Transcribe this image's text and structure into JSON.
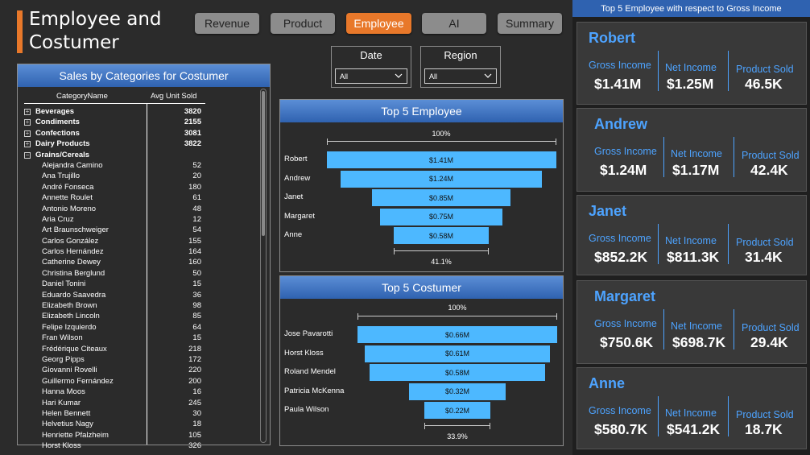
{
  "header": {
    "title_line1": "Employee and",
    "title_line2": "Costumer"
  },
  "nav": {
    "buttons": [
      "Revenue",
      "Product",
      "Employee",
      "AI",
      "Summary"
    ],
    "active": "Employee"
  },
  "slicers": [
    {
      "title": "Date",
      "value": "All"
    },
    {
      "title": "Region",
      "value": "All"
    }
  ],
  "table": {
    "title": "Sales by Categories for Costumer",
    "col_name": "CategoryName",
    "col_value": "Avg Unit Sold",
    "rows": [
      {
        "type": "cat",
        "expand": "+",
        "name": "Beverages",
        "value": "3820"
      },
      {
        "type": "cat",
        "expand": "+",
        "name": "Condiments",
        "value": "2155"
      },
      {
        "type": "cat",
        "expand": "+",
        "name": "Confections",
        "value": "3081"
      },
      {
        "type": "cat",
        "expand": "+",
        "name": "Dairy Products",
        "value": "3822"
      },
      {
        "type": "cat",
        "expand": "−",
        "name": "Grains/Cereals",
        "value": ""
      },
      {
        "type": "item",
        "name": "Alejandra Camino",
        "value": "52"
      },
      {
        "type": "item",
        "name": "Ana Trujillo",
        "value": "20"
      },
      {
        "type": "item",
        "name": "André Fonseca",
        "value": "180"
      },
      {
        "type": "item",
        "name": "Annette Roulet",
        "value": "61"
      },
      {
        "type": "item",
        "name": "Antonio Moreno",
        "value": "48"
      },
      {
        "type": "item",
        "name": "Aria Cruz",
        "value": "12"
      },
      {
        "type": "item",
        "name": "Art Braunschweiger",
        "value": "54"
      },
      {
        "type": "item",
        "name": "Carlos González",
        "value": "155"
      },
      {
        "type": "item",
        "name": "Carlos Hernández",
        "value": "164"
      },
      {
        "type": "item",
        "name": "Catherine Dewey",
        "value": "160"
      },
      {
        "type": "item",
        "name": "Christina Berglund",
        "value": "50"
      },
      {
        "type": "item",
        "name": "Daniel Tonini",
        "value": "15"
      },
      {
        "type": "item",
        "name": "Eduardo Saavedra",
        "value": "36"
      },
      {
        "type": "item",
        "name": "Elizabeth Brown",
        "value": "98"
      },
      {
        "type": "item",
        "name": "Elizabeth Lincoln",
        "value": "85"
      },
      {
        "type": "item",
        "name": "Felipe Izquierdo",
        "value": "64"
      },
      {
        "type": "item",
        "name": "Fran Wilson",
        "value": "15"
      },
      {
        "type": "item",
        "name": "Frédérique Citeaux",
        "value": "218"
      },
      {
        "type": "item",
        "name": "Georg Pipps",
        "value": "172"
      },
      {
        "type": "item",
        "name": "Giovanni Rovelli",
        "value": "220"
      },
      {
        "type": "item",
        "name": "Guillermo Fernández",
        "value": "200"
      },
      {
        "type": "item",
        "name": "Hanna Moos",
        "value": "16"
      },
      {
        "type": "item",
        "name": "Hari Kumar",
        "value": "245"
      },
      {
        "type": "item",
        "name": "Helen Bennett",
        "value": "30"
      },
      {
        "type": "item",
        "name": "Helvetius Nagy",
        "value": "18"
      },
      {
        "type": "item",
        "name": "Henriette Pfalzheim",
        "value": "105"
      },
      {
        "type": "item",
        "name": "Horst Kloss",
        "value": "326"
      }
    ]
  },
  "funnel_employee": {
    "title": "Top 5 Employee",
    "top_pct": "100%",
    "bottom_pct": "41.1%",
    "items": [
      {
        "name": "Robert",
        "label": "$1.41M",
        "value": 1.41
      },
      {
        "name": "Andrew",
        "label": "$1.24M",
        "value": 1.24
      },
      {
        "name": "Janet",
        "label": "$0.85M",
        "value": 0.85
      },
      {
        "name": "Margaret",
        "label": "$0.75M",
        "value": 0.75
      },
      {
        "name": "Anne",
        "label": "$0.58M",
        "value": 0.58
      }
    ]
  },
  "funnel_customer": {
    "title": "Top 5 Costumer",
    "top_pct": "100%",
    "bottom_pct": "33.9%",
    "items": [
      {
        "name": "Jose Pavarotti",
        "label": "$0.66M",
        "value": 0.66
      },
      {
        "name": "Horst Kloss",
        "label": "$0.61M",
        "value": 0.61
      },
      {
        "name": "Roland Mendel",
        "label": "$0.58M",
        "value": 0.58
      },
      {
        "name": "Patricia McKenna",
        "label": "$0.32M",
        "value": 0.32
      },
      {
        "name": "Paula Wilson",
        "label": "$0.22M",
        "value": 0.22
      }
    ]
  },
  "right_panel": {
    "title": "Top 5 Employee with respect to Gross Income",
    "labels": {
      "gross": "Gross Income",
      "net": "Net Income",
      "sold": "Product Sold"
    },
    "cards": [
      {
        "name": "Robert",
        "gross": "$1.41M",
        "net": "$1.25M",
        "sold": "46.5K"
      },
      {
        "name": "Andrew",
        "gross": "$1.24M",
        "net": "$1.17M",
        "sold": "42.4K"
      },
      {
        "name": "Janet",
        "gross": "$852.2K",
        "net": "$811.3K",
        "sold": "31.4K"
      },
      {
        "name": "Margaret",
        "gross": "$750.6K",
        "net": "$698.7K",
        "sold": "29.4K"
      },
      {
        "name": "Anne",
        "gross": "$580.7K",
        "net": "$541.2K",
        "sold": "18.7K"
      }
    ]
  },
  "colors": {
    "accent": "#e8782a",
    "bar": "#4db8ff",
    "header_blue": "#2f62b0",
    "kpi_blue": "#4da3ff"
  }
}
